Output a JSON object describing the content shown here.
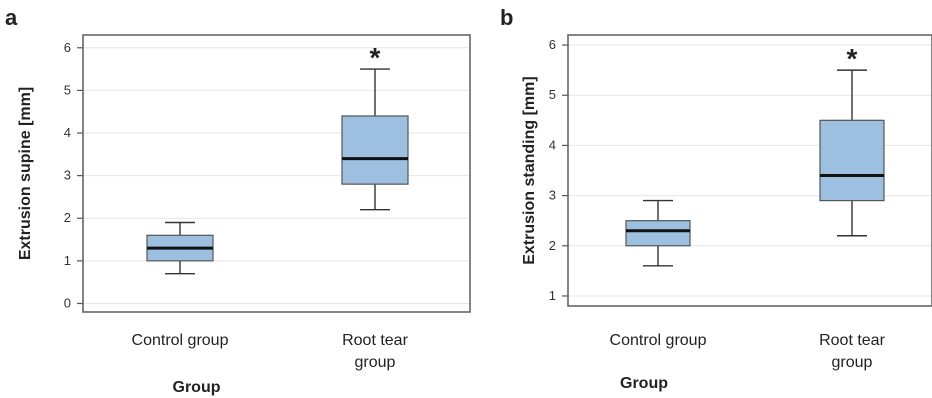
{
  "chart_data": [
    {
      "type": "box",
      "panel_label": "a",
      "ylabel": "Extrusion supine [mm]",
      "xlabel": "Group",
      "ylim": [
        -0.2,
        6.3
      ],
      "yticks": [
        "0",
        "1",
        "2",
        "3",
        "4",
        "5",
        "6"
      ],
      "grid": true,
      "categories": [
        {
          "lines": [
            "Control group"
          ]
        },
        {
          "lines": [
            "Root tear",
            "group"
          ]
        }
      ],
      "boxes": [
        {
          "whislo": 0.7,
          "q1": 1.0,
          "med": 1.3,
          "q3": 1.6,
          "whishi": 1.9,
          "annotation": ""
        },
        {
          "whislo": 2.2,
          "q1": 2.8,
          "med": 3.4,
          "q3": 4.4,
          "whishi": 5.5,
          "annotation": "*"
        }
      ]
    },
    {
      "type": "box",
      "panel_label": "b",
      "ylabel": "Extrusion standing [mm]",
      "xlabel": "Group",
      "ylim": [
        0.8,
        6.2
      ],
      "yticks": [
        "1",
        "2",
        "3",
        "4",
        "5",
        "6"
      ],
      "grid": true,
      "categories": [
        {
          "lines": [
            "Control group"
          ]
        },
        {
          "lines": [
            "Root tear",
            "group"
          ]
        }
      ],
      "boxes": [
        {
          "whislo": 1.6,
          "q1": 2.0,
          "med": 2.3,
          "q3": 2.5,
          "whishi": 2.9,
          "annotation": ""
        },
        {
          "whislo": 2.2,
          "q1": 2.9,
          "med": 3.4,
          "q3": 4.5,
          "whishi": 5.5,
          "annotation": "*"
        }
      ]
    }
  ]
}
